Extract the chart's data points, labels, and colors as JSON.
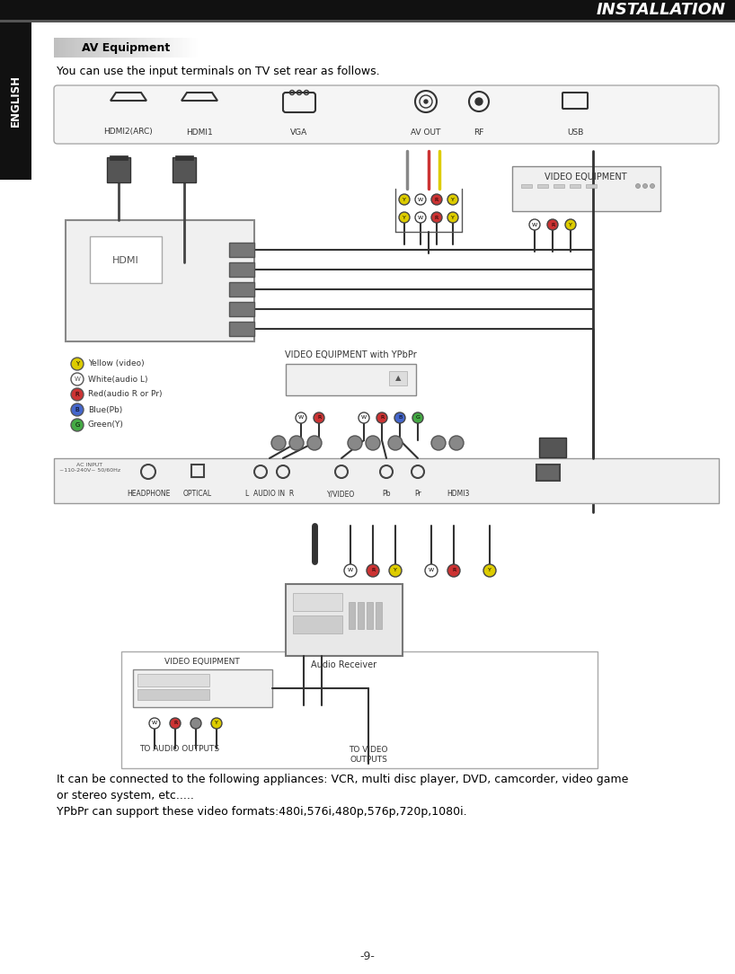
{
  "title": "INSTALLATION",
  "section_title": "AV Equipment",
  "intro_text": "You can use the input terminals on TV set rear as follows.",
  "body_text1": "It can be connected to the following appliances: VCR, multi disc player, DVD, camcorder, video game",
  "body_text2": "or stereo system, etc.....",
  "body_text3": "YPbPr can support these video formats:480i,576i,480p,576p,720p,1080i.",
  "page_number": "-9-",
  "english_label": "ENGLISH",
  "top_connectors": [
    "HDMI2(ARC)",
    "HDMI1",
    "VGA",
    "AV OUT",
    "RF",
    "USB"
  ],
  "legend_items": [
    "Yellow (video)",
    "White(audio L)",
    "Red(audio R or Pr)",
    "Blue(Pb)",
    "Green(Y)"
  ],
  "legend_symbols": [
    "Y",
    "W",
    "R",
    "B",
    "G"
  ],
  "video_eq_label": "VIDEO EQUIPMENT",
  "video_eq_ypbpr": "VIDEO EQUIPMENT with YPbPr",
  "audio_receiver_label": "Audio Receiver",
  "to_audio_outputs": "TO AUDIO OUTPUTS",
  "to_video_outputs": "TO VIDEO\nOUTPUTS",
  "bottom_ports": [
    "HEADPHONE",
    "OPTICAL",
    "L  AUDIO IN  R",
    "Y/VIDEO",
    "Pb",
    "Pr",
    "HDMI3"
  ],
  "bg_color": "#ffffff",
  "header_bg": "#111111",
  "english_bg": "#111111",
  "diagram_bg": "#f8f8f8",
  "section_gradient_left": "#cccccc",
  "section_gradient_right": "#f0f0f0"
}
